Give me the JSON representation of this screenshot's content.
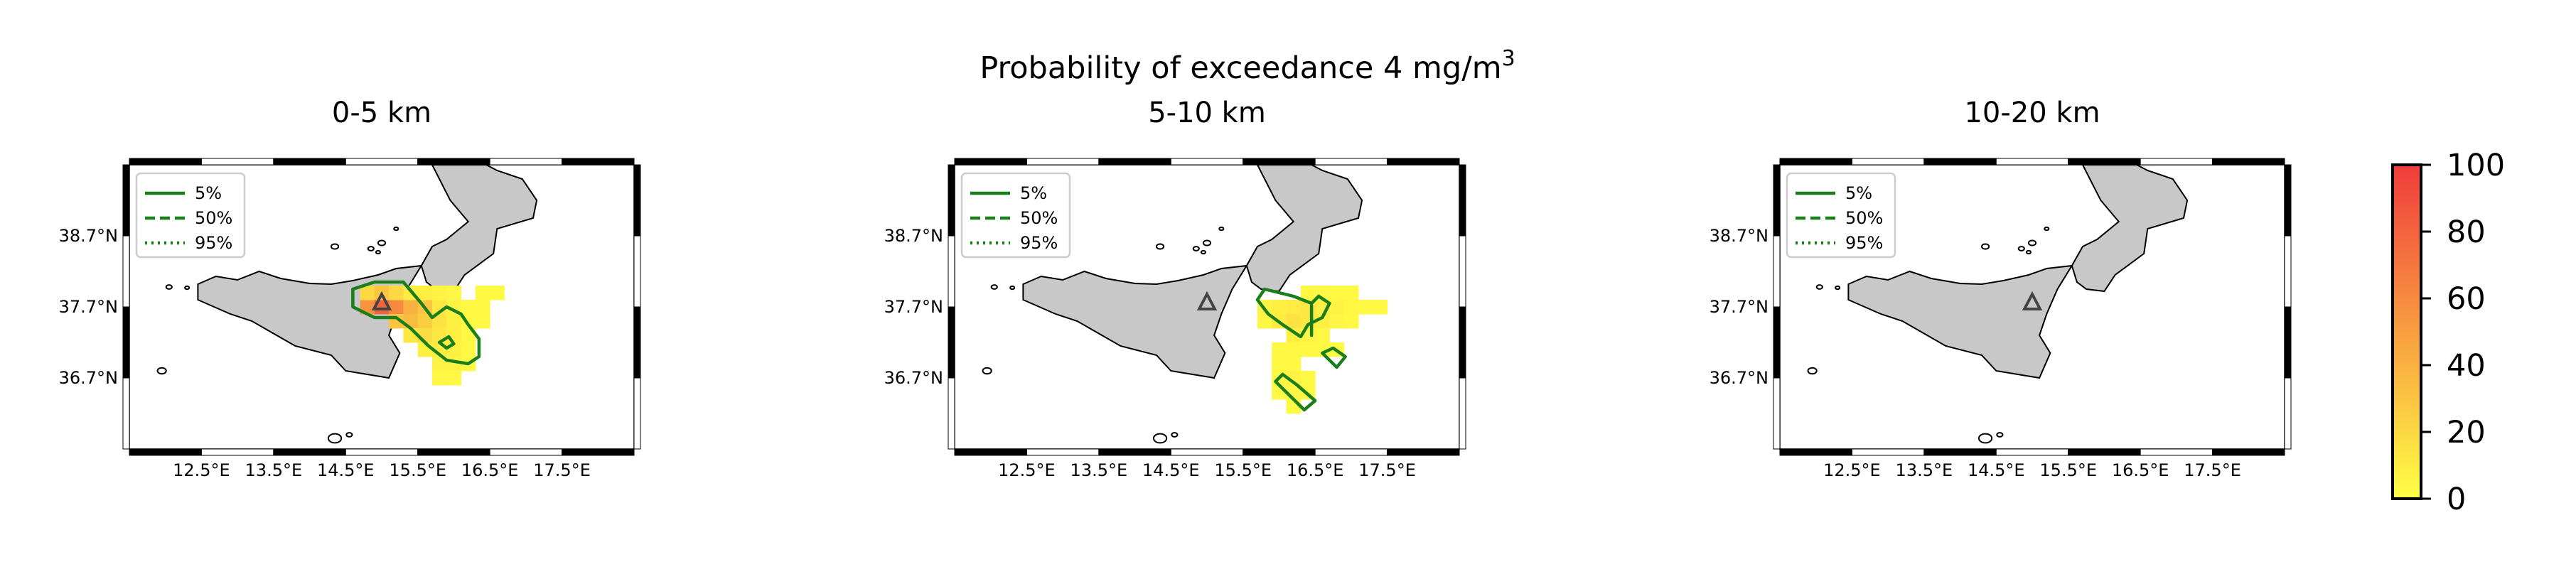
{
  "chart_data": {
    "type": "heatmap",
    "suptitle": "Probability of exceedance 4 mg/m",
    "suptitle_sup": "3",
    "lon_range": [
      11.5,
      18.5
    ],
    "lat_range": [
      35.7,
      39.7
    ],
    "lon_ticks": [
      12.5,
      13.5,
      14.5,
      15.5,
      16.5,
      17.5
    ],
    "lon_tick_labels": [
      "12.5°E",
      "13.5°E",
      "14.5°E",
      "15.5°E",
      "16.5°E",
      "17.5°E"
    ],
    "lat_ticks": [
      38.7,
      37.7,
      36.7
    ],
    "lat_tick_labels": [
      "38.7°N",
      "37.7°N",
      "36.7°N"
    ],
    "volcano": {
      "lon": 15.0,
      "lat": 37.75
    },
    "legend": {
      "placement": "upper-left",
      "entries": [
        {
          "label": "5%",
          "style": "solid"
        },
        {
          "label": "50%",
          "style": "dashed"
        },
        {
          "label": "95%",
          "style": "dotted"
        }
      ]
    },
    "colorbar": {
      "ticks": [
        0,
        20,
        40,
        60,
        80,
        100
      ],
      "tick_labels": [
        "0",
        "20",
        "40",
        "60",
        "80",
        "100"
      ],
      "range": [
        0,
        100
      ]
    },
    "colors": {
      "land": "#c8c8c8",
      "contour": "#1a7f1a",
      "low": "#ffff44",
      "high": "#f03c3c"
    },
    "panels": [
      {
        "title": "0-5 km",
        "cells": [
          [
            14.8,
            37.7,
            55
          ],
          [
            15.0,
            37.7,
            80
          ],
          [
            15.2,
            37.7,
            60
          ],
          [
            15.4,
            37.7,
            40
          ],
          [
            15.6,
            37.7,
            30
          ],
          [
            15.8,
            37.7,
            12
          ],
          [
            16.0,
            37.7,
            6
          ],
          [
            16.2,
            37.7,
            4
          ],
          [
            14.8,
            37.9,
            20
          ],
          [
            15.0,
            37.9,
            30
          ],
          [
            15.2,
            37.9,
            20
          ],
          [
            15.4,
            37.9,
            10
          ],
          [
            15.6,
            37.9,
            8
          ],
          [
            15.8,
            37.9,
            6
          ],
          [
            16.0,
            37.9,
            4
          ],
          [
            15.2,
            37.5,
            30
          ],
          [
            15.4,
            37.5,
            35
          ],
          [
            15.6,
            37.5,
            25
          ],
          [
            15.8,
            37.5,
            15
          ],
          [
            16.0,
            37.5,
            8
          ],
          [
            16.2,
            37.5,
            4
          ],
          [
            15.4,
            37.3,
            12
          ],
          [
            15.6,
            37.3,
            18
          ],
          [
            15.8,
            37.3,
            12
          ],
          [
            16.0,
            37.3,
            8
          ],
          [
            16.2,
            37.3,
            4
          ],
          [
            15.6,
            37.1,
            8
          ],
          [
            15.8,
            37.1,
            10
          ],
          [
            16.0,
            37.1,
            8
          ],
          [
            16.2,
            37.1,
            4
          ],
          [
            15.8,
            36.9,
            6
          ],
          [
            16.0,
            36.9,
            6
          ],
          [
            16.2,
            36.9,
            3
          ],
          [
            15.8,
            36.7,
            4
          ],
          [
            16.0,
            36.7,
            3
          ],
          [
            16.4,
            37.7,
            3
          ],
          [
            16.4,
            37.5,
            3
          ],
          [
            16.6,
            37.9,
            3
          ],
          [
            16.4,
            37.9,
            3
          ]
        ],
        "contours": [
          {
            "level": "5%",
            "points": [
              [
                14.6,
                37.95
              ],
              [
                14.9,
                38.05
              ],
              [
                15.3,
                38.05
              ],
              [
                15.55,
                37.75
              ],
              [
                15.7,
                37.55
              ],
              [
                15.9,
                37.7
              ],
              [
                16.1,
                37.6
              ],
              [
                16.2,
                37.45
              ],
              [
                16.35,
                37.25
              ],
              [
                16.35,
                37.0
              ],
              [
                16.2,
                36.9
              ],
              [
                15.9,
                36.95
              ],
              [
                15.65,
                37.15
              ],
              [
                15.4,
                37.4
              ],
              [
                15.2,
                37.55
              ],
              [
                14.9,
                37.55
              ],
              [
                14.6,
                37.7
              ]
            ]
          },
          {
            "level": "5%",
            "points": [
              [
                15.8,
                37.2
              ],
              [
                15.93,
                37.28
              ],
              [
                16.0,
                37.18
              ],
              [
                15.9,
                37.12
              ]
            ]
          }
        ]
      },
      {
        "title": "5-10 km",
        "cells": [
          [
            15.8,
            37.7,
            6
          ],
          [
            16.0,
            37.7,
            8
          ],
          [
            16.2,
            37.7,
            10
          ],
          [
            16.4,
            37.7,
            12
          ],
          [
            16.6,
            37.7,
            8
          ],
          [
            16.8,
            37.7,
            6
          ],
          [
            17.0,
            37.7,
            4
          ],
          [
            17.2,
            37.7,
            3
          ],
          [
            17.4,
            37.7,
            3
          ],
          [
            16.4,
            37.9,
            4
          ],
          [
            16.6,
            37.9,
            4
          ],
          [
            16.8,
            37.9,
            3
          ],
          [
            17.0,
            37.9,
            3
          ],
          [
            15.8,
            37.5,
            4
          ],
          [
            16.0,
            37.5,
            10
          ],
          [
            16.2,
            37.5,
            15
          ],
          [
            16.4,
            37.5,
            12
          ],
          [
            16.6,
            37.5,
            8
          ],
          [
            16.8,
            37.5,
            5
          ],
          [
            17.0,
            37.5,
            3
          ],
          [
            16.2,
            37.3,
            8
          ],
          [
            16.4,
            37.3,
            6
          ],
          [
            16.6,
            37.3,
            4
          ],
          [
            16.0,
            37.1,
            4
          ],
          [
            16.2,
            37.1,
            4
          ],
          [
            16.4,
            37.1,
            3
          ],
          [
            16.6,
            37.1,
            3
          ],
          [
            16.8,
            37.1,
            3
          ],
          [
            16.0,
            36.9,
            3
          ],
          [
            16.2,
            36.9,
            3
          ],
          [
            16.0,
            36.7,
            4
          ],
          [
            16.2,
            36.7,
            6
          ],
          [
            16.4,
            36.7,
            3
          ],
          [
            16.0,
            36.5,
            3
          ],
          [
            16.2,
            36.5,
            5
          ],
          [
            16.4,
            36.5,
            3
          ],
          [
            16.2,
            36.3,
            3
          ]
        ],
        "contours": [
          {
            "level": "5%",
            "points": [
              [
                15.8,
                37.95
              ],
              [
                16.2,
                37.85
              ],
              [
                16.45,
                37.75
              ],
              [
                16.55,
                37.85
              ],
              [
                16.7,
                37.75
              ],
              [
                16.6,
                37.55
              ],
              [
                16.4,
                37.45
              ],
              [
                16.3,
                37.28
              ],
              [
                16.05,
                37.45
              ],
              [
                15.85,
                37.6
              ],
              [
                15.7,
                37.8
              ]
            ]
          },
          {
            "level": "5%",
            "points": [
              [
                16.45,
                37.72
              ],
              [
                16.45,
                37.3
              ]
            ]
          },
          {
            "level": "5%",
            "points": [
              [
                16.6,
                37.05
              ],
              [
                16.75,
                37.12
              ],
              [
                16.92,
                37.0
              ],
              [
                16.8,
                36.85
              ]
            ]
          },
          {
            "level": "5%",
            "points": [
              [
                16.05,
                36.75
              ],
              [
                16.25,
                36.6
              ],
              [
                16.5,
                36.38
              ],
              [
                16.35,
                36.25
              ],
              [
                16.15,
                36.45
              ],
              [
                15.95,
                36.65
              ]
            ]
          }
        ]
      },
      {
        "title": "10-20 km",
        "cells": [],
        "contours": []
      }
    ]
  }
}
